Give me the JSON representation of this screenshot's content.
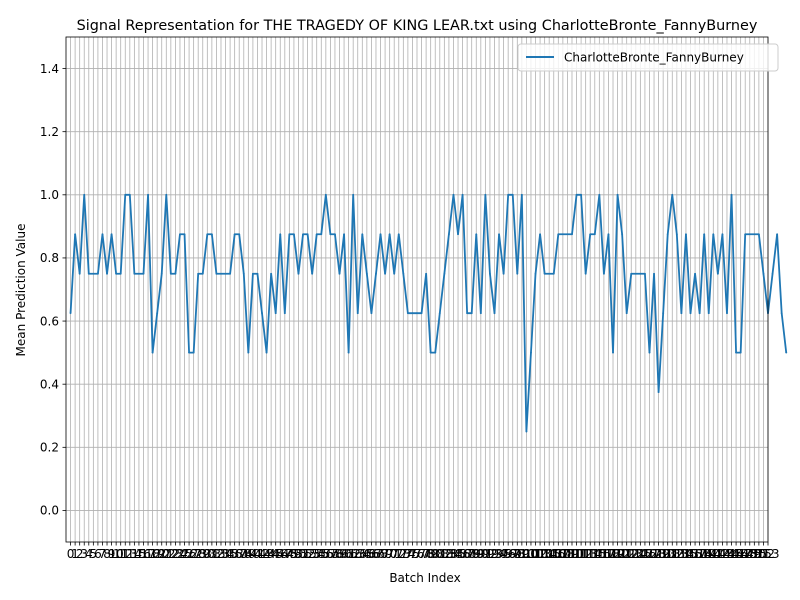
{
  "chart_data": {
    "type": "line",
    "title": "Signal Representation for THE TRAGEDY OF KING LEAR.txt using CharlotteBronte_FannyBurney",
    "xlabel": "Batch Index",
    "ylabel": "Mean Prediction Value",
    "xlim": [
      -1,
      153
    ],
    "ylim": [
      -0.1,
      1.5
    ],
    "yticks": [
      0.0,
      0.2,
      0.4,
      0.6,
      0.8,
      1.0,
      1.2,
      1.4
    ],
    "ytick_labels": [
      "0.0",
      "0.2",
      "0.4",
      "0.6",
      "0.8",
      "1.0",
      "1.2",
      "1.4"
    ],
    "xtick_start": 0,
    "xtick_end": 153,
    "grid": true,
    "legend_position": "top-right",
    "series": [
      {
        "name": "CharlotteBronte_FannyBurney",
        "color": "#1f77b4",
        "values": [
          0.625,
          0.875,
          0.75,
          1.0,
          0.75,
          0.75,
          0.75,
          0.875,
          0.75,
          0.875,
          0.75,
          0.75,
          1.0,
          1.0,
          0.75,
          0.75,
          0.75,
          1.0,
          0.5,
          0.625,
          0.75,
          1.0,
          0.75,
          0.75,
          0.875,
          0.875,
          0.5,
          0.5,
          0.75,
          0.75,
          0.875,
          0.875,
          0.75,
          0.75,
          0.75,
          0.75,
          0.875,
          0.875,
          0.75,
          0.5,
          0.75,
          0.75,
          0.625,
          0.5,
          0.75,
          0.625,
          0.875,
          0.625,
          0.875,
          0.875,
          0.75,
          0.875,
          0.875,
          0.75,
          0.875,
          0.875,
          1.0,
          0.875,
          0.875,
          0.75,
          0.875,
          0.5,
          1.0,
          0.625,
          0.875,
          0.75,
          0.625,
          0.75,
          0.875,
          0.75,
          0.875,
          0.75,
          0.875,
          0.75,
          0.625,
          0.625,
          0.625,
          0.625,
          0.75,
          0.5,
          0.5,
          0.625,
          0.75,
          0.875,
          1.0,
          0.875,
          1.0,
          0.625,
          0.625,
          0.875,
          0.625,
          1.0,
          0.75,
          0.625,
          0.875,
          0.75,
          1.0,
          1.0,
          0.75,
          1.0,
          0.25,
          0.5,
          0.75,
          0.875,
          0.75,
          0.75,
          0.75,
          0.875,
          0.875,
          0.875,
          0.875,
          1.0,
          1.0,
          0.75,
          0.875,
          0.875,
          1.0,
          0.75,
          0.875,
          0.5,
          1.0,
          0.875,
          0.625,
          0.75,
          0.75,
          0.75,
          0.75,
          0.5,
          0.75,
          0.375,
          0.625,
          0.875,
          1.0,
          0.875,
          0.625,
          0.875,
          0.625,
          0.75,
          0.625,
          0.875,
          0.625,
          0.875,
          0.75,
          0.875,
          0.625,
          1.0,
          0.5,
          0.5,
          0.875,
          0.875,
          0.875,
          0.875,
          0.75,
          0.625,
          0.75,
          0.875,
          0.625,
          0.5
        ]
      }
    ]
  }
}
